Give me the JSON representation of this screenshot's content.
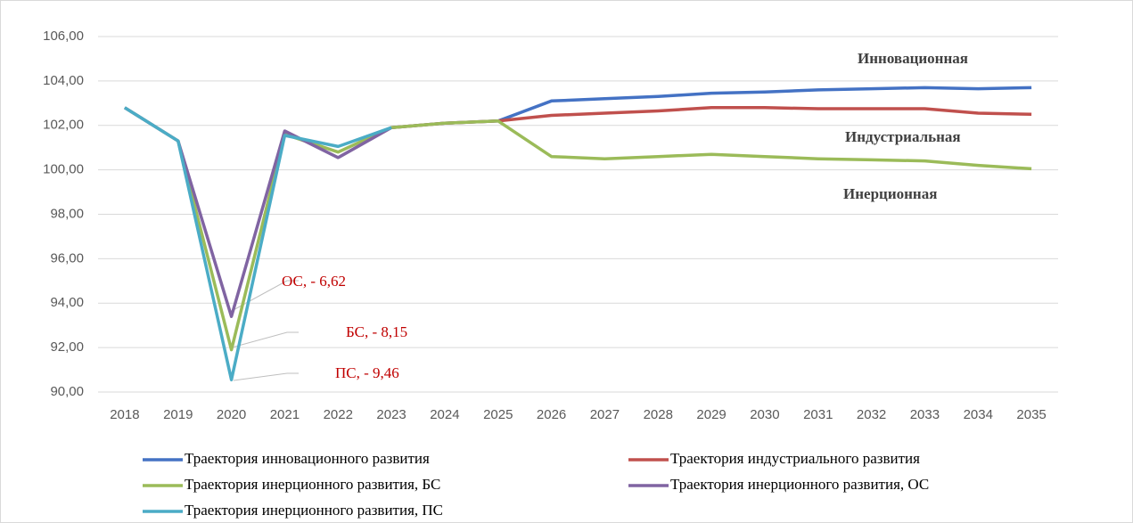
{
  "chart_data": {
    "type": "line",
    "categories": [
      "2018",
      "2019",
      "2020",
      "2021",
      "2022",
      "2023",
      "2024",
      "2025",
      "2026",
      "2027",
      "2028",
      "2029",
      "2030",
      "2031",
      "2032",
      "2033",
      "2034",
      "2035"
    ],
    "series": [
      {
        "name": "Траектория инновационного развития",
        "color": "#4472c4",
        "values": [
          null,
          null,
          null,
          null,
          null,
          101.9,
          102.1,
          102.2,
          103.1,
          103.2,
          103.3,
          103.45,
          103.5,
          103.6,
          103.65,
          103.7,
          103.65,
          103.7
        ]
      },
      {
        "name": "Траектория индустриального развития",
        "color": "#c0504d",
        "values": [
          null,
          null,
          null,
          null,
          null,
          101.9,
          102.1,
          102.2,
          102.45,
          102.55,
          102.65,
          102.8,
          102.8,
          102.75,
          102.75,
          102.75,
          102.55,
          102.5
        ]
      },
      {
        "name": "Траектория инерционного развития, БС",
        "color": "#9bbb59",
        "values": [
          102.8,
          101.3,
          91.9,
          101.6,
          100.8,
          101.9,
          102.1,
          102.2,
          100.6,
          100.5,
          100.6,
          100.7,
          100.6,
          100.5,
          100.45,
          100.4,
          100.2,
          100.05
        ]
      },
      {
        "name": "Траектория инерционного развития, ОС",
        "color": "#8064a2",
        "values": [
          102.8,
          101.3,
          93.4,
          101.75,
          100.55,
          101.9,
          null,
          null,
          null,
          null,
          null,
          null,
          null,
          null,
          null,
          null,
          null,
          null
        ]
      },
      {
        "name": "Траектория инерционного развития, ПС",
        "color": "#4bacc6",
        "values": [
          102.8,
          101.3,
          90.55,
          101.55,
          101.05,
          101.9,
          null,
          null,
          null,
          null,
          null,
          null,
          null,
          null,
          null,
          null,
          null,
          null
        ]
      }
    ],
    "ylim": [
      90,
      106
    ],
    "yticks": [
      {
        "value": 90,
        "label": "90,00"
      },
      {
        "value": 92,
        "label": "92,00"
      },
      {
        "value": 94,
        "label": "94,00"
      },
      {
        "value": 96,
        "label": "96,00"
      },
      {
        "value": 98,
        "label": "98,00"
      },
      {
        "value": 100,
        "label": "100,00"
      },
      {
        "value": 102,
        "label": "102,00"
      },
      {
        "value": 104,
        "label": "104,00"
      },
      {
        "value": 106,
        "label": "106,00"
      }
    ],
    "grid": true,
    "annotations": [
      "ОС, - 6,62",
      "БС, - 8,15",
      "ПС, - 9,46"
    ],
    "scenario_labels": [
      "Инновационная",
      "Индустриальная",
      "Инерционная"
    ]
  }
}
